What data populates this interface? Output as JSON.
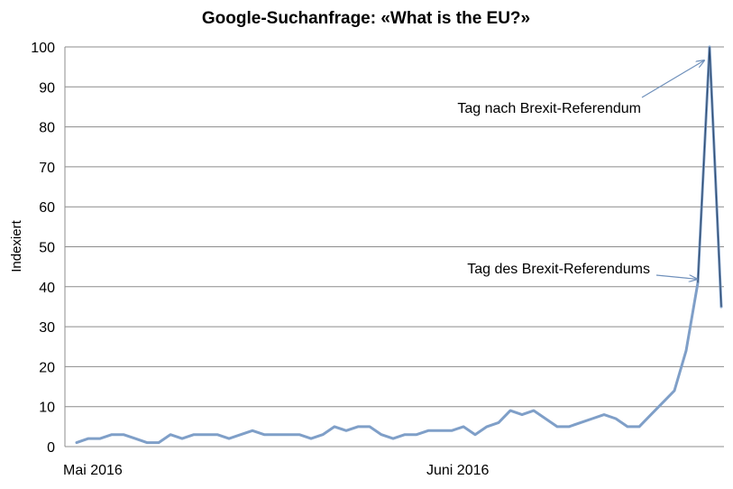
{
  "chart_data": {
    "type": "line",
    "title": "Google-Suchanfrage: «What is the EU?»",
    "ylabel": "Indexiert",
    "xlabel": "",
    "ylim": [
      0,
      100
    ],
    "yticks": [
      0,
      10,
      20,
      30,
      40,
      50,
      60,
      70,
      80,
      90,
      100
    ],
    "grid": true,
    "xtick_labels": [
      {
        "label": "Mai 2016",
        "index": 0
      },
      {
        "label": "Juni 2016",
        "index": 31
      }
    ],
    "series": [
      {
        "color": "#7f9fc8",
        "values": [
          1,
          2,
          2,
          3,
          3,
          2,
          1,
          1,
          3,
          2,
          3,
          3,
          3,
          2,
          3,
          4,
          3,
          3,
          3,
          3,
          2,
          3,
          5,
          4,
          5,
          5,
          3,
          2,
          3,
          3,
          4,
          4,
          4,
          5,
          3,
          5,
          6,
          9,
          8,
          9,
          7,
          5,
          5,
          6,
          7,
          8,
          7,
          5,
          5,
          8,
          11,
          14,
          24,
          41,
          100,
          35
        ]
      }
    ],
    "peak_color": "#2e4a6e",
    "annotations": [
      {
        "text": "Tag nach Brexit-Referendum",
        "index": 54
      },
      {
        "text": "Tag des Brexit-Referendums",
        "index": 53
      }
    ]
  }
}
